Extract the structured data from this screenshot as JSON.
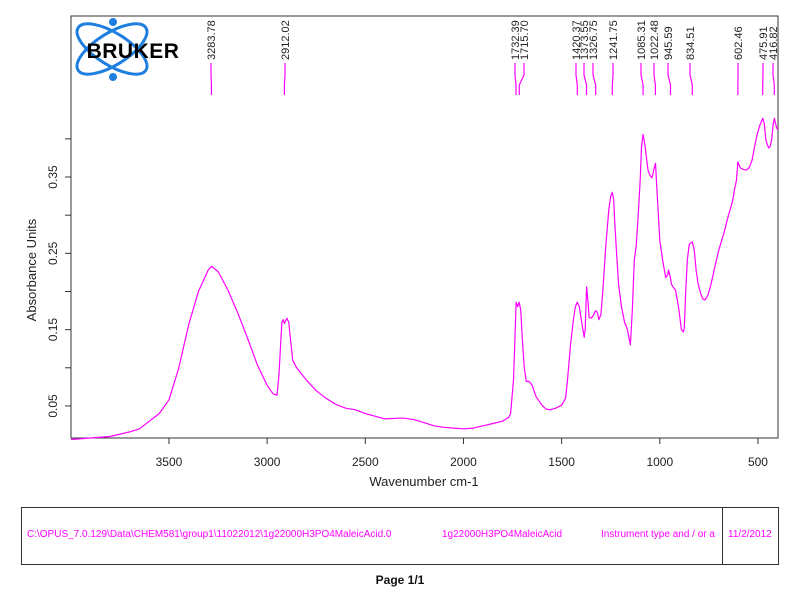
{
  "logo": {
    "text": "BRUKER",
    "color_text": "#000000",
    "color_orbit": "#1e7fe0"
  },
  "footer": {
    "file_path": "C:\\OPUS_7.0.129\\Data\\CHEM581\\group1\\11022012\\1g22000H3PO4MaleicAcid.0",
    "sample_name": "1g22000H3PO4MaleicAcid",
    "instrument": "Instrument type and / or a",
    "date": "11/2/2012"
  },
  "page": {
    "label": "Page 1/1"
  },
  "colors": {
    "spectrum": "#ff00ff",
    "axis": "#333333",
    "footer_text": "#ff00ff"
  },
  "chart_data": {
    "type": "line",
    "title": "",
    "xlabel": "Wavenumber cm-1",
    "ylabel": "Absorbance Units",
    "xlim": [
      3999,
      398
    ],
    "ylim": [
      0.008,
      0.561
    ],
    "x_reversed": true,
    "grid": false,
    "legend": null,
    "x_ticks": [
      3500,
      3000,
      2500,
      2000,
      1500,
      1000,
      500
    ],
    "x_tick_labels": [
      "3500",
      "3000",
      "2500",
      "2000",
      "1500",
      "1000",
      "500"
    ],
    "y_ticks_labeled": [
      0.05,
      0.15,
      0.25,
      0.35
    ],
    "y_tick_labels": [
      "0.05",
      "0.15",
      "0.25",
      "0.35"
    ],
    "y_ticks_minor": [
      0.1,
      0.2,
      0.3,
      0.4
    ],
    "peak_labels": [
      "3283.78",
      "2912.02",
      "1732.39",
      "1715.70",
      "1420.37",
      "1373.55",
      "1326.75",
      "1241.75",
      "1085.31",
      "1022.48",
      "945.59",
      "834.51",
      "602.46",
      "475.91",
      "416.82"
    ],
    "peaks": [
      3283.78,
      2912.02,
      1732.39,
      1715.7,
      1420.37,
      1373.55,
      1326.75,
      1241.75,
      1085.31,
      1022.48,
      945.59,
      834.51,
      602.46,
      475.91,
      416.82
    ],
    "series": [
      {
        "name": "1g22000H3PO4MaleicAcid",
        "color": "#ff00ff",
        "x": [
          3999,
          3900,
          3800,
          3700,
          3650,
          3600,
          3550,
          3500,
          3450,
          3400,
          3350,
          3300,
          3284,
          3250,
          3200,
          3150,
          3100,
          3050,
          3000,
          2970,
          2950,
          2940,
          2925,
          2918,
          2912,
          2900,
          2890,
          2870,
          2850,
          2800,
          2750,
          2700,
          2650,
          2600,
          2550,
          2500,
          2400,
          2330,
          2300,
          2250,
          2200,
          2150,
          2100,
          2050,
          2000,
          1950,
          1900,
          1850,
          1800,
          1770,
          1760,
          1745,
          1735,
          1732,
          1724,
          1716,
          1708,
          1700,
          1690,
          1680,
          1665,
          1650,
          1630,
          1600,
          1580,
          1560,
          1530,
          1500,
          1480,
          1470,
          1455,
          1440,
          1430,
          1420,
          1410,
          1400,
          1385,
          1380,
          1373,
          1365,
          1360,
          1350,
          1340,
          1327,
          1318,
          1310,
          1300,
          1290,
          1275,
          1260,
          1250,
          1242,
          1235,
          1230,
          1220,
          1210,
          1195,
          1180,
          1165,
          1150,
          1140,
          1130,
          1120,
          1110,
          1100,
          1093,
          1085,
          1075,
          1060,
          1050,
          1040,
          1030,
          1022,
          1012,
          1000,
          985,
          970,
          960,
          955,
          946,
          940,
          930,
          920,
          905,
          890,
          880,
          875,
          868,
          860,
          850,
          835,
          825,
          815,
          805,
          790,
          780,
          770,
          755,
          740,
          720,
          700,
          675,
          650,
          630,
          620,
          610,
          602,
          595,
          590,
          575,
          560,
          545,
          530,
          520,
          505,
          490,
          476,
          468,
          460,
          452,
          445,
          438,
          430,
          423,
          417,
          410,
          404,
          398
        ],
        "y": [
          0.006,
          0.008,
          0.01,
          0.016,
          0.02,
          0.03,
          0.04,
          0.058,
          0.1,
          0.156,
          0.2,
          0.228,
          0.233,
          0.226,
          0.202,
          0.172,
          0.139,
          0.104,
          0.077,
          0.066,
          0.064,
          0.09,
          0.16,
          0.163,
          0.158,
          0.165,
          0.16,
          0.11,
          0.1,
          0.084,
          0.07,
          0.06,
          0.052,
          0.047,
          0.045,
          0.04,
          0.033,
          0.034,
          0.034,
          0.032,
          0.028,
          0.024,
          0.022,
          0.021,
          0.02,
          0.021,
          0.024,
          0.027,
          0.03,
          0.035,
          0.04,
          0.084,
          0.16,
          0.186,
          0.18,
          0.186,
          0.175,
          0.136,
          0.1,
          0.082,
          0.082,
          0.077,
          0.062,
          0.051,
          0.046,
          0.045,
          0.047,
          0.051,
          0.06,
          0.084,
          0.13,
          0.163,
          0.18,
          0.186,
          0.18,
          0.163,
          0.14,
          0.15,
          0.206,
          0.185,
          0.166,
          0.165,
          0.168,
          0.175,
          0.172,
          0.163,
          0.17,
          0.202,
          0.26,
          0.307,
          0.325,
          0.33,
          0.32,
          0.294,
          0.25,
          0.209,
          0.18,
          0.16,
          0.15,
          0.13,
          0.175,
          0.241,
          0.26,
          0.3,
          0.346,
          0.39,
          0.406,
          0.39,
          0.359,
          0.352,
          0.349,
          0.36,
          0.368,
          0.32,
          0.267,
          0.24,
          0.218,
          0.222,
          0.228,
          0.218,
          0.209,
          0.205,
          0.202,
          0.18,
          0.15,
          0.147,
          0.152,
          0.2,
          0.241,
          0.262,
          0.265,
          0.255,
          0.228,
          0.21,
          0.196,
          0.19,
          0.189,
          0.195,
          0.209,
          0.232,
          0.254,
          0.275,
          0.3,
          0.318,
          0.333,
          0.345,
          0.37,
          0.365,
          0.362,
          0.36,
          0.359,
          0.362,
          0.372,
          0.386,
          0.405,
          0.418,
          0.427,
          0.42,
          0.399,
          0.392,
          0.388,
          0.39,
          0.399,
          0.418,
          0.427,
          0.42,
          0.414,
          0.412
        ]
      }
    ]
  }
}
